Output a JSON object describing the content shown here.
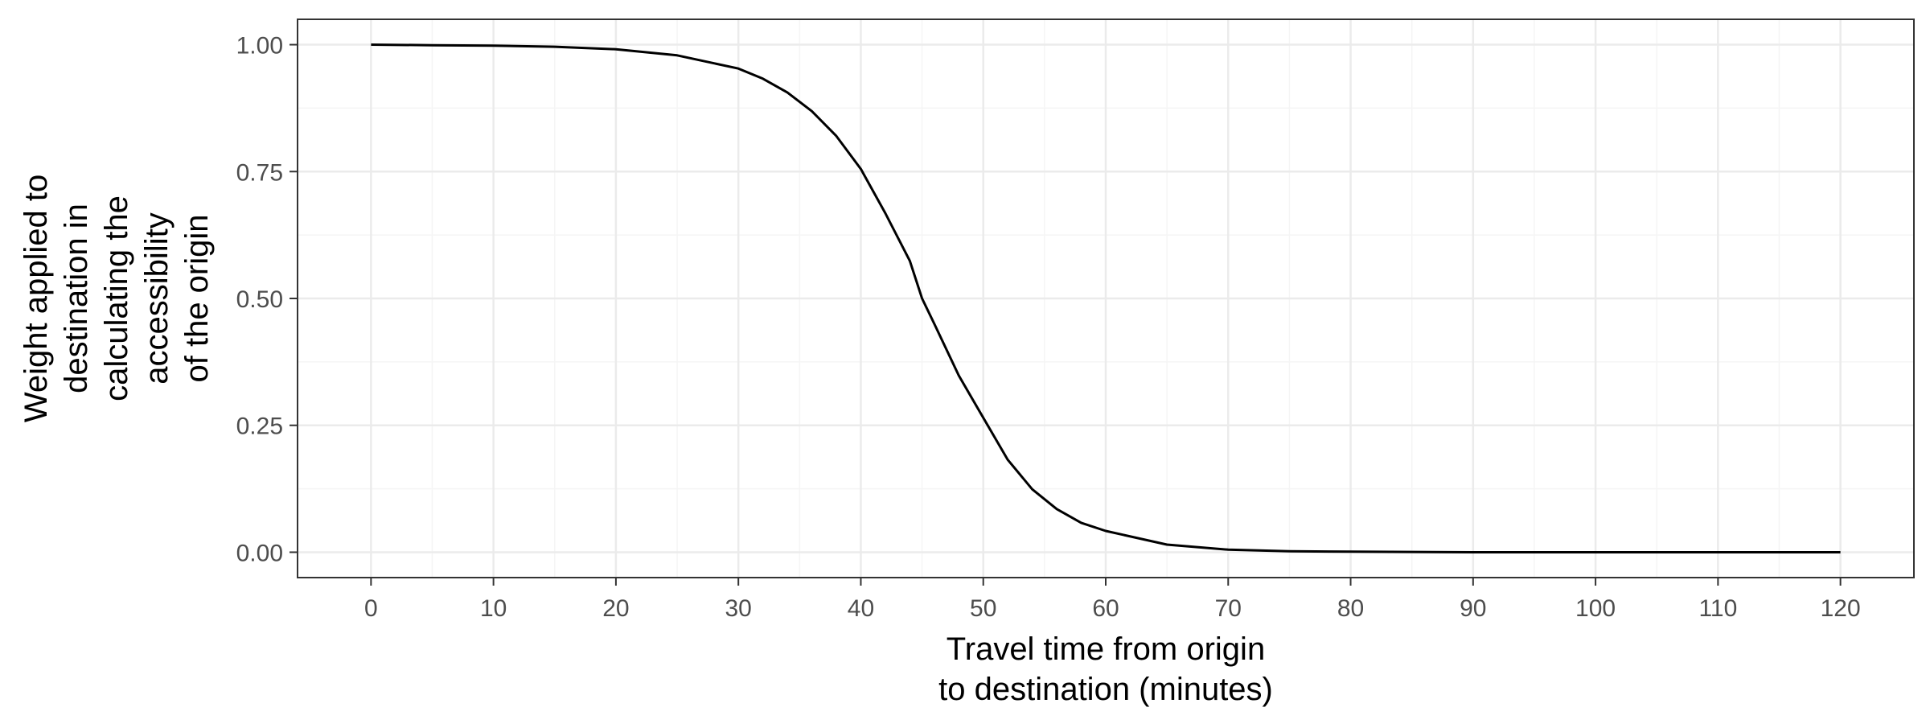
{
  "chart_data": {
    "type": "line",
    "title": "",
    "xlabel_lines": [
      "Travel time from origin",
      "to destination (minutes)"
    ],
    "ylabel_lines": [
      "Weight applied to",
      "destination in",
      "calculating the",
      "accessibility",
      "of the origin"
    ],
    "xlim": [
      -6,
      126
    ],
    "ylim": [
      -0.05,
      1.05
    ],
    "x_ticks": [
      0,
      10,
      20,
      30,
      40,
      50,
      60,
      70,
      80,
      90,
      100,
      110,
      120
    ],
    "x_tick_labels": [
      "0",
      "10",
      "20",
      "30",
      "40",
      "50",
      "60",
      "70",
      "80",
      "90",
      "100",
      "110",
      "120"
    ],
    "y_ticks": [
      0,
      0.25,
      0.5,
      0.75,
      1
    ],
    "y_tick_labels": [
      "0.00",
      "0.25",
      "0.50",
      "0.75",
      "1.00"
    ],
    "grid": true,
    "legend": "none",
    "series": [
      {
        "color": "#000000",
        "x": [
          0,
          5,
          10,
          15,
          20,
          25,
          30,
          32,
          34,
          36,
          38,
          40,
          42,
          44,
          45,
          46,
          48,
          50,
          52,
          54,
          56,
          58,
          60,
          65,
          70,
          75,
          80,
          90,
          100,
          110,
          120
        ],
        "y": [
          1.0,
          0.999,
          0.998,
          0.996,
          0.991,
          0.979,
          0.953,
          0.933,
          0.906,
          0.869,
          0.82,
          0.755,
          0.668,
          0.574,
          0.5,
          0.45,
          0.348,
          0.265,
          0.182,
          0.124,
          0.085,
          0.058,
          0.042,
          0.015,
          0.005,
          0.002,
          0.001,
          0.0,
          0.0,
          0.0,
          0.0
        ]
      }
    ]
  },
  "colors": {
    "panel_border": "#333333",
    "grid_major": "#ebebeb",
    "grid_minor": "#f5f5f5",
    "line": "#000000"
  }
}
